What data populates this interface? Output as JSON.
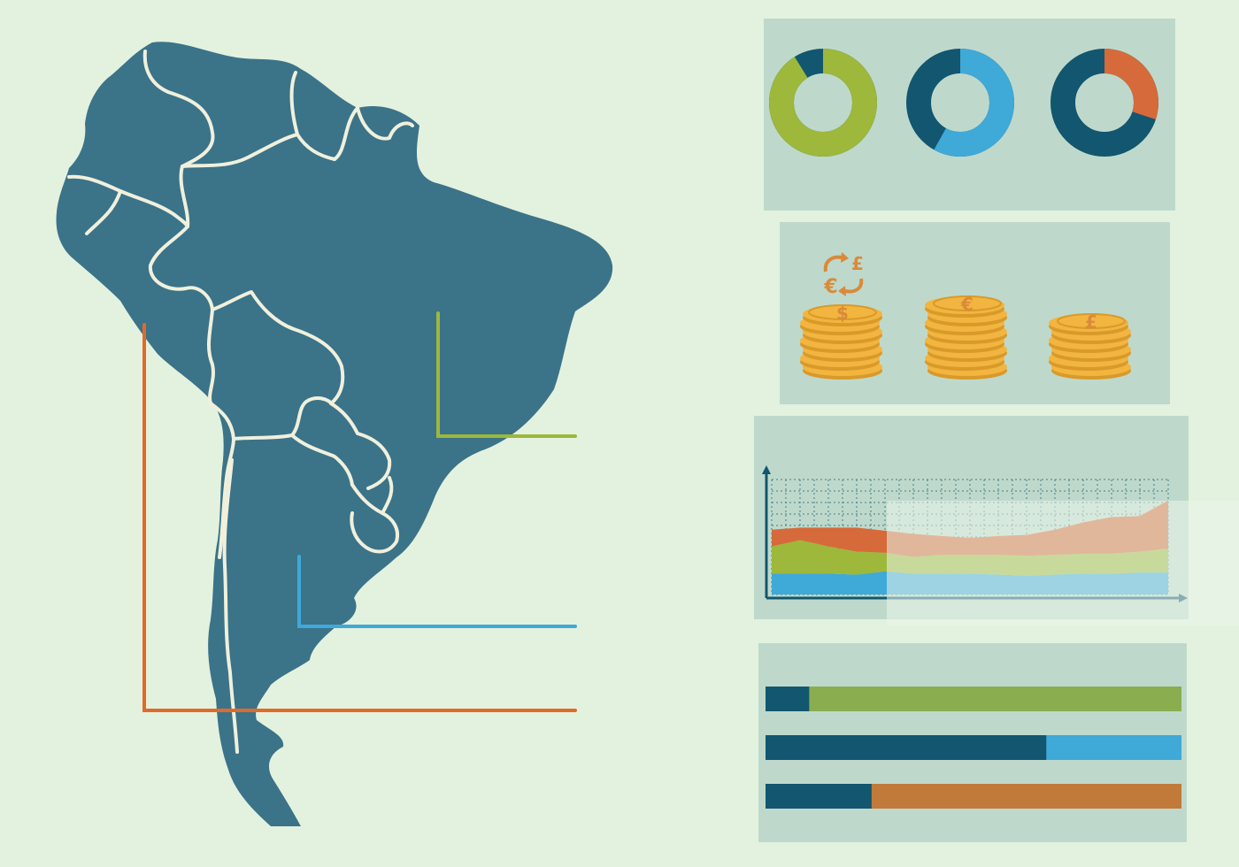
{
  "colors": {
    "background": "#e3f2de",
    "panel": "#bed9cb",
    "map_fill": "#3b7389",
    "map_border": "#f0f0dc",
    "dark": "#12566f",
    "green": "#9db83a",
    "blue": "#3fa9d8",
    "orange": "#d66a3a",
    "coin": "#f2b53f",
    "coin_dark": "#d99a2a",
    "coin_symbol": "#d98a3a"
  },
  "map": {
    "callouts": [
      {
        "name": "green-callout",
        "color": "#9db83a"
      },
      {
        "name": "blue-callout",
        "color": "#3fa9d8"
      },
      {
        "name": "orange-callout",
        "color": "#e06a2a"
      }
    ]
  },
  "donuts": [
    {
      "name": "donut-green",
      "primary_fraction": 0.91,
      "primary_color": "#9db83a",
      "secondary_color": "#12566f"
    },
    {
      "name": "donut-blue",
      "primary_fraction": 0.58,
      "primary_color": "#3fa9d8",
      "secondary_color": "#12566f"
    },
    {
      "name": "donut-orange",
      "primary_fraction": 0.3,
      "primary_color": "#d66a3a",
      "secondary_color": "#12566f"
    }
  ],
  "coins": {
    "exchange_symbols": [
      "£",
      "€"
    ],
    "stacks": [
      {
        "symbol": "$",
        "height": 7
      },
      {
        "symbol": "€",
        "height": 8
      },
      {
        "symbol": "£",
        "height": 6
      }
    ]
  },
  "area_chart": {
    "series": [
      {
        "color": "#3fa9d8",
        "values": [
          2.0,
          2.0,
          2.0,
          1.9,
          2.2,
          2.0,
          2.0,
          2.0,
          1.9,
          1.8,
          1.9,
          2.0,
          2.0,
          2.1,
          2.1
        ]
      },
      {
        "color": "#9db83a",
        "values": [
          2.6,
          3.2,
          2.6,
          2.2,
          1.8,
          1.6,
          1.8,
          1.8,
          1.9,
          1.9,
          1.9,
          1.9,
          1.9,
          2.0,
          2.3
        ]
      },
      {
        "color": "#d66a3a",
        "values": [
          1.6,
          1.2,
          1.8,
          2.3,
          2.1,
          2.2,
          1.8,
          1.6,
          1.8,
          2.0,
          2.4,
          3.0,
          3.5,
          3.4,
          4.6
        ]
      }
    ],
    "ylim": [
      0,
      11
    ],
    "gridlines": true
  },
  "bars": [
    {
      "name": "bar-green",
      "fraction": 0.105,
      "fill_color": "#8aad50",
      "base_color": "#12566f"
    },
    {
      "name": "bar-blue",
      "fraction": 0.675,
      "fill_color": "#3fa9d8",
      "base_color": "#12566f"
    },
    {
      "name": "bar-orange",
      "fraction": 0.255,
      "fill_color": "#c27a3a",
      "base_color": "#12566f"
    }
  ]
}
